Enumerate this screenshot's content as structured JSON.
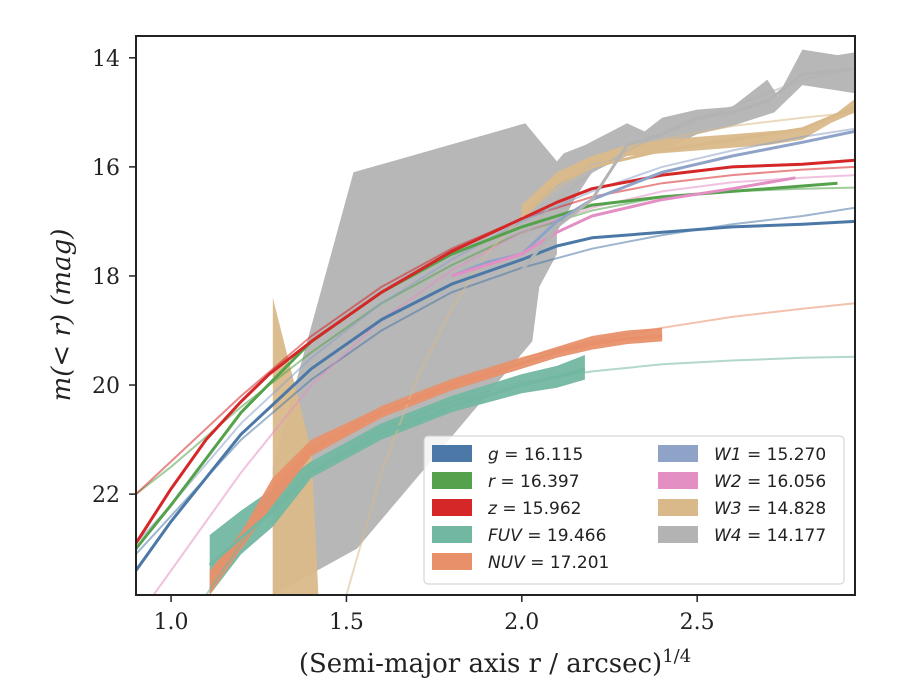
{
  "chart_data": {
    "type": "line",
    "title": "",
    "xlabel": "(Semi-major axis r / arcsec)",
    "xlabel_superscript": "1/4",
    "ylabel": "m(< r) (mag)",
    "xlim": [
      0.9,
      2.95
    ],
    "ylim": [
      23.85,
      13.6
    ],
    "y_inverted": true,
    "x_ticks": [
      1.0,
      1.5,
      2.0,
      2.5
    ],
    "x_tick_labels": [
      "1.0",
      "1.5",
      "2.0",
      "2.5"
    ],
    "y_ticks": [
      14,
      16,
      18,
      20,
      22
    ],
    "y_tick_labels": [
      "14",
      "16",
      "18",
      "20",
      "22"
    ],
    "grid": false,
    "legend_position": "lower-right",
    "series": [
      {
        "name": "g = 16.115",
        "color": "#4c78a8",
        "data_x": [
          0.9,
          1.0,
          1.2,
          1.4,
          1.6,
          1.8,
          2.0,
          2.1,
          2.2,
          2.4,
          2.6,
          2.8,
          2.95
        ],
        "data_y": [
          23.4,
          22.5,
          20.9,
          19.7,
          18.8,
          18.15,
          17.7,
          17.45,
          17.3,
          17.2,
          17.1,
          17.05,
          17.0
        ],
        "model_x": [
          0.9,
          1.0,
          1.2,
          1.4,
          1.6,
          1.8,
          2.0,
          2.2,
          2.4,
          2.6,
          2.8,
          2.95
        ],
        "model_y": [
          23.1,
          22.4,
          21.0,
          19.9,
          19.0,
          18.3,
          17.85,
          17.5,
          17.25,
          17.05,
          16.9,
          16.75
        ]
      },
      {
        "name": "r = 16.397",
        "color": "#54a24b",
        "data_x": [
          0.9,
          1.0,
          1.2,
          1.4,
          1.6,
          1.8,
          2.0,
          2.1,
          2.2,
          2.4,
          2.6,
          2.8,
          2.9
        ],
        "data_y": [
          23.0,
          22.2,
          20.5,
          19.2,
          18.3,
          17.6,
          17.1,
          16.9,
          16.7,
          16.55,
          16.45,
          16.35,
          16.3
        ],
        "model_x": [
          0.9,
          1.0,
          1.2,
          1.4,
          1.6,
          1.8,
          2.0,
          2.2,
          2.4,
          2.6,
          2.8,
          2.95
        ],
        "model_y": [
          22.0,
          21.5,
          20.4,
          19.4,
          18.5,
          17.8,
          17.2,
          16.8,
          16.55,
          16.45,
          16.4,
          16.38
        ]
      },
      {
        "name": "z = 15.962",
        "color": "#d62728",
        "data_x": [
          0.9,
          1.0,
          1.1,
          1.2,
          1.28,
          1.4,
          1.6,
          1.8,
          2.0,
          2.1,
          2.2,
          2.4,
          2.6,
          2.8,
          2.95
        ],
        "data_y": [
          22.9,
          21.9,
          21.0,
          20.3,
          19.8,
          19.2,
          18.3,
          17.55,
          16.95,
          16.65,
          16.4,
          16.15,
          16.0,
          15.95,
          15.88
        ],
        "model_x": [
          0.9,
          1.0,
          1.2,
          1.4,
          1.6,
          1.8,
          2.0,
          2.2,
          2.4,
          2.6,
          2.8,
          2.95
        ],
        "model_y": [
          22.0,
          21.4,
          20.2,
          19.1,
          18.2,
          17.5,
          16.95,
          16.55,
          16.3,
          16.15,
          16.05,
          16.0
        ]
      },
      {
        "name": "FUV = 19.466",
        "color": "#72b7a1",
        "data_x": [
          1.11,
          1.2,
          1.29,
          1.4,
          1.6,
          1.8,
          2.0,
          2.1,
          2.18
        ],
        "data_y": [
          23.3,
          22.8,
          22.3,
          21.6,
          20.9,
          20.4,
          20.0,
          19.85,
          19.7
        ],
        "model_x": [
          1.1,
          1.2,
          1.3,
          1.4,
          1.6,
          1.8,
          2.0,
          2.2,
          2.4,
          2.6,
          2.8,
          2.95
        ],
        "model_y": [
          23.85,
          22.9,
          22.2,
          21.6,
          20.8,
          20.3,
          19.95,
          19.75,
          19.62,
          19.55,
          19.5,
          19.48
        ]
      },
      {
        "name": "NUV = 17.201",
        "color": "#e8906a",
        "data_x": [
          1.29,
          1.4,
          1.6,
          1.8,
          2.0,
          2.1,
          2.2,
          2.25,
          2.3,
          2.4
        ],
        "data_y": [
          21.9,
          21.2,
          20.5,
          20.0,
          19.6,
          19.4,
          19.25,
          19.2,
          19.15,
          19.1
        ],
        "model_x": [
          1.2,
          1.3,
          1.4,
          1.6,
          1.8,
          2.0,
          2.2,
          2.4,
          2.6,
          2.8,
          2.95
        ],
        "model_y": [
          23.0,
          22.0,
          21.2,
          20.4,
          19.9,
          19.5,
          19.2,
          18.95,
          18.75,
          18.6,
          18.5
        ]
      },
      {
        "name": "W1 = 15.270",
        "color": "#8fa3c8",
        "data_x": [
          1.8,
          1.9,
          2.0,
          2.1,
          2.2,
          2.4,
          2.6,
          2.8,
          2.95
        ],
        "data_y": [
          18.0,
          17.75,
          17.6,
          17.0,
          16.6,
          16.1,
          15.8,
          15.55,
          15.35
        ],
        "model_x": [
          0.9,
          1.0,
          1.2,
          1.4,
          1.6,
          1.8,
          2.0,
          2.2,
          2.4,
          2.6,
          2.8,
          2.95
        ],
        "model_y": [
          22.9,
          22.2,
          20.7,
          19.5,
          18.5,
          17.7,
          17.0,
          16.45,
          16.0,
          15.7,
          15.45,
          15.3
        ]
      },
      {
        "name": "W2 = 16.056",
        "color": "#e38fc4",
        "data_x": [
          1.8,
          1.9,
          2.0,
          2.1,
          2.2,
          2.4,
          2.6,
          2.78
        ],
        "data_y": [
          18.0,
          17.8,
          17.6,
          17.2,
          16.9,
          16.6,
          16.4,
          16.2
        ],
        "model_x": [
          0.95,
          1.0,
          1.2,
          1.4,
          1.6,
          1.8,
          2.0,
          2.2,
          2.4,
          2.6,
          2.8,
          2.95
        ],
        "model_y": [
          23.85,
          23.4,
          21.6,
          20.0,
          18.8,
          17.9,
          17.2,
          16.75,
          16.45,
          16.28,
          16.2,
          16.15
        ]
      },
      {
        "name": "W3 = 14.828",
        "color": "#d9b98a",
        "data_x": [
          2.0,
          2.1,
          2.2,
          2.4,
          2.6,
          2.8,
          2.95
        ],
        "data_y": [
          16.9,
          16.3,
          16.0,
          15.7,
          15.5,
          15.3,
          14.9
        ],
        "model_x": [
          1.5,
          1.6,
          1.7,
          1.8,
          1.9,
          2.0,
          2.1,
          2.2,
          2.4,
          2.6,
          2.8,
          2.95
        ],
        "model_y": [
          23.85,
          21.6,
          19.9,
          18.6,
          17.6,
          16.9,
          16.4,
          16.0,
          15.5,
          15.25,
          15.1,
          15.0
        ]
      },
      {
        "name": "W4 = 14.177",
        "color": "#b3b3b3",
        "data_x": [
          2.0,
          2.1,
          2.2,
          2.3,
          2.4,
          2.5,
          2.6,
          2.7,
          2.8,
          2.95
        ],
        "data_y": [
          17.9,
          17.1,
          16.6,
          15.6,
          15.4,
          15.1,
          15.0,
          14.8,
          14.3,
          14.2
        ],
        "model_x": [
          2.0,
          2.1,
          2.2,
          2.3,
          2.4,
          2.5,
          2.6,
          2.7,
          2.8,
          2.95
        ],
        "model_y": [
          17.3,
          16.6,
          16.1,
          15.7,
          15.4,
          15.15,
          14.9,
          14.65,
          14.4,
          14.2
        ]
      }
    ],
    "bands": [
      {
        "series": "W4 = 14.177",
        "color": "#b3b3b3",
        "outline_x": [
          1.29,
          1.29,
          1.52,
          2.01,
          2.1,
          2.12,
          2.18,
          2.3,
          2.35,
          2.4,
          2.5,
          2.6,
          2.7,
          2.73,
          2.8,
          2.9,
          2.95,
          2.95,
          2.9,
          2.8,
          2.72,
          2.6,
          2.5,
          2.4,
          2.3,
          2.2,
          2.15,
          2.1,
          2.1,
          2.05,
          2.03,
          1.53,
          1.29
        ],
        "outline_y": [
          17.75,
          21.5,
          16.1,
          15.2,
          15.9,
          15.75,
          15.6,
          15.2,
          15.35,
          15.1,
          14.95,
          14.9,
          14.4,
          14.7,
          13.85,
          13.95,
          13.9,
          14.65,
          14.6,
          14.5,
          15.0,
          15.25,
          15.4,
          15.7,
          15.8,
          16.1,
          16.6,
          17.2,
          17.6,
          18.2,
          19.2,
          23.0,
          23.85
        ]
      },
      {
        "series": "W3 = 14.828",
        "color": "#d9b98a",
        "outline_x": [
          2.0,
          2.1,
          2.2,
          2.3,
          2.4,
          2.5,
          2.6,
          2.7,
          2.8,
          2.88,
          2.95,
          2.95,
          2.88,
          2.8,
          2.7,
          2.6,
          2.5,
          2.4,
          2.3,
          2.2,
          2.1,
          2.0
        ],
        "outline_y": [
          16.7,
          16.1,
          15.8,
          15.6,
          15.5,
          15.45,
          15.4,
          15.35,
          15.3,
          15.1,
          14.75,
          15.0,
          15.2,
          15.5,
          15.6,
          15.65,
          15.7,
          15.75,
          15.8,
          15.95,
          16.3,
          17.0
        ]
      },
      {
        "series": "W3 = 14.828 (inner)",
        "color": "#d9b98a",
        "outline_x": [
          1.29,
          1.29,
          1.3,
          1.35,
          1.42,
          1.41,
          1.4,
          1.29
        ],
        "outline_y": [
          18.4,
          23.85,
          23.85,
          23.85,
          23.85,
          22.5,
          21.2,
          18.4
        ]
      },
      {
        "series": "FUV = 19.466",
        "color": "#72b7a1",
        "outline_x": [
          1.11,
          1.2,
          1.29,
          1.4,
          1.6,
          1.8,
          2.0,
          2.1,
          2.18,
          2.18,
          2.1,
          2.0,
          1.8,
          1.6,
          1.4,
          1.29,
          1.2,
          1.11
        ],
        "outline_y": [
          22.75,
          22.3,
          21.9,
          21.4,
          20.7,
          20.2,
          19.8,
          19.65,
          19.45,
          19.9,
          20.05,
          20.15,
          20.5,
          21.0,
          21.7,
          22.6,
          23.1,
          23.85
        ]
      },
      {
        "series": "NUV = 17.201",
        "color": "#e8906a",
        "outline_x": [
          1.11,
          1.2,
          1.29,
          1.4,
          1.6,
          1.8,
          2.0,
          2.1,
          2.2,
          2.3,
          2.4,
          2.4,
          2.3,
          2.2,
          2.1,
          2.0,
          1.8,
          1.6,
          1.4,
          1.29,
          1.2,
          1.11
        ],
        "outline_y": [
          23.4,
          22.7,
          21.7,
          21.0,
          20.4,
          19.9,
          19.5,
          19.3,
          19.1,
          19.0,
          18.95,
          19.2,
          19.25,
          19.35,
          19.5,
          19.7,
          20.1,
          20.6,
          21.3,
          22.2,
          23.0,
          23.85
        ]
      }
    ]
  }
}
